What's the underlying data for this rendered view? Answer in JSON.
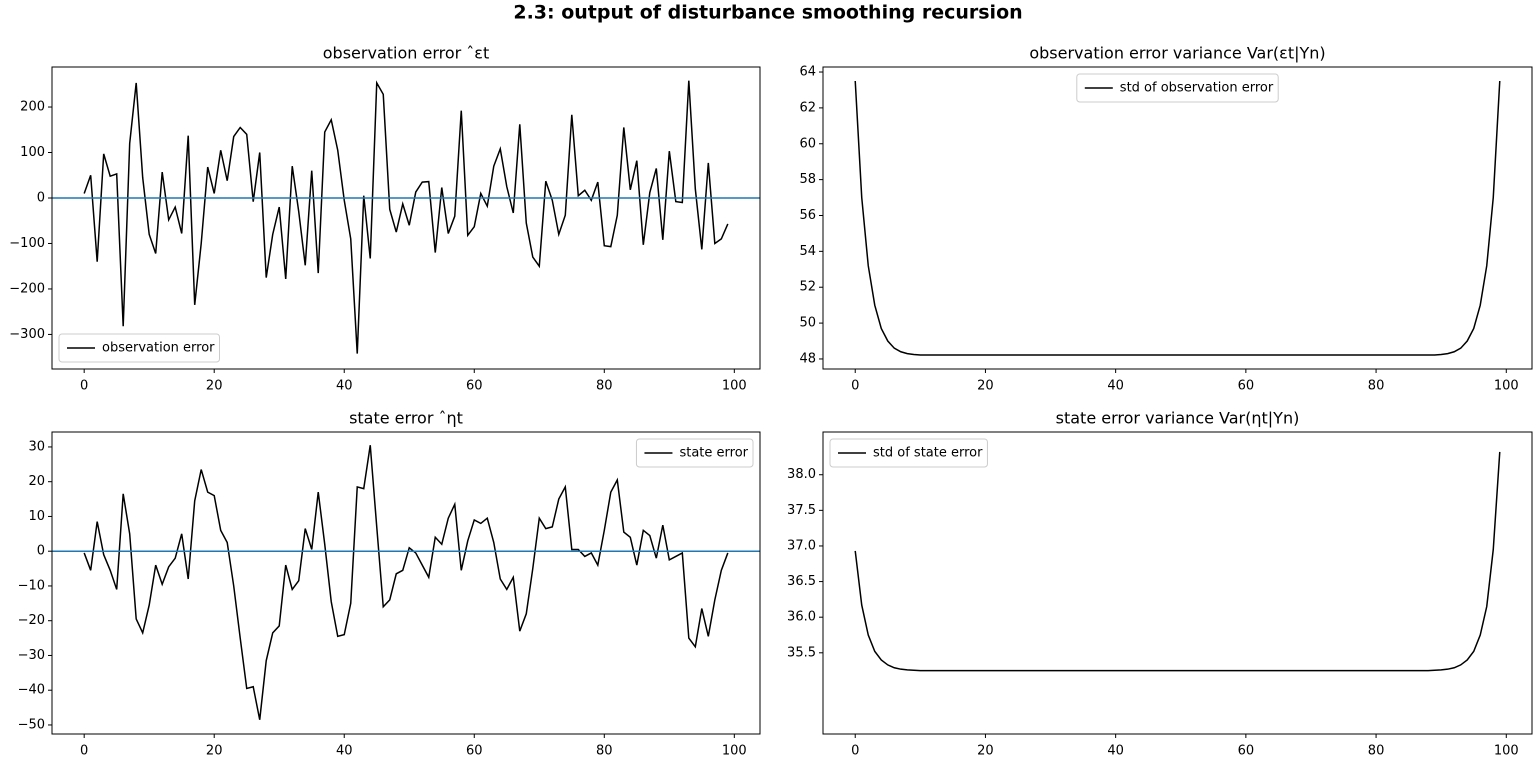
{
  "title": "2.3: output of disturbance smoothing recursion",
  "chart_data": [
    {
      "type": "line",
      "title": "observation error ˆεt",
      "legend": "lower left",
      "axhline": 0,
      "axhline_color": "#1f77b4",
      "xlim": [
        -4.95,
        103.95
      ],
      "xticks": [
        0,
        20,
        40,
        60,
        80,
        100
      ],
      "ylim": [
        -376,
        288
      ],
      "yticks": [
        {
          "value": -300,
          "label": "−300"
        },
        {
          "value": -200,
          "label": "−200"
        },
        {
          "value": -100,
          "label": "−100"
        },
        0,
        100,
        200
      ],
      "x": [
        0,
        1,
        2,
        3,
        4,
        5,
        6,
        7,
        8,
        9,
        10,
        11,
        12,
        13,
        14,
        15,
        16,
        17,
        18,
        19,
        20,
        21,
        22,
        23,
        24,
        25,
        26,
        27,
        28,
        29,
        30,
        31,
        32,
        33,
        34,
        35,
        36,
        37,
        38,
        39,
        40,
        41,
        42,
        43,
        44,
        45,
        46,
        47,
        48,
        49,
        50,
        51,
        52,
        53,
        54,
        55,
        56,
        57,
        58,
        59,
        60,
        61,
        62,
        63,
        64,
        65,
        66,
        67,
        68,
        69,
        70,
        71,
        72,
        73,
        74,
        75,
        76,
        77,
        78,
        79,
        80,
        81,
        82,
        83,
        84,
        85,
        86,
        87,
        88,
        89,
        90,
        91,
        92,
        93,
        94,
        95,
        96,
        97,
        98,
        99
      ],
      "series": [
        {
          "name": "observation error",
          "color": "#000000",
          "values": [
            10,
            50,
            -140,
            97,
            48,
            53,
            -282,
            120,
            253,
            45,
            -80,
            -122,
            57,
            -48,
            -20,
            -78,
            137,
            -235,
            -100,
            68,
            10,
            105,
            38,
            135,
            155,
            140,
            -8,
            100,
            -175,
            -80,
            -20,
            -178,
            70,
            -30,
            -148,
            60,
            -165,
            145,
            172,
            105,
            -5,
            -90,
            -342,
            5,
            -133,
            253,
            228,
            -25,
            -75,
            -13,
            -60,
            13,
            35,
            36,
            -120,
            23,
            -78,
            -40,
            192,
            -82,
            -63,
            10,
            -18,
            70,
            108,
            25,
            -33,
            162,
            -55,
            -130,
            -150,
            37,
            -5,
            -80,
            -38,
            183,
            5,
            17,
            -5,
            35,
            -105,
            -107,
            -38,
            155,
            18,
            82,
            -103,
            12,
            65,
            -92,
            103,
            -8,
            -10,
            258,
            20,
            -113,
            77,
            -100,
            -90,
            -57
          ]
        }
      ]
    },
    {
      "type": "line",
      "title": "observation error variance Var(εt|Yn)",
      "legend": "upper center",
      "xlim": [
        -4.95,
        103.95
      ],
      "xticks": [
        0,
        20,
        40,
        60,
        80,
        100
      ],
      "ylim": [
        47.44,
        64.28
      ],
      "yticks": [
        48,
        50,
        52,
        54,
        56,
        58,
        60,
        62,
        64
      ],
      "x": [
        0,
        1,
        2,
        3,
        4,
        5,
        6,
        7,
        8,
        9,
        10,
        11,
        12,
        13,
        14,
        15,
        16,
        17,
        18,
        19,
        20,
        21,
        22,
        23,
        24,
        25,
        26,
        27,
        28,
        29,
        30,
        31,
        32,
        33,
        34,
        35,
        36,
        37,
        38,
        39,
        40,
        41,
        42,
        43,
        44,
        45,
        46,
        47,
        48,
        49,
        50,
        51,
        52,
        53,
        54,
        55,
        56,
        57,
        58,
        59,
        60,
        61,
        62,
        63,
        64,
        65,
        66,
        67,
        68,
        69,
        70,
        71,
        72,
        73,
        74,
        75,
        76,
        77,
        78,
        79,
        80,
        81,
        82,
        83,
        84,
        85,
        86,
        87,
        88,
        89,
        90,
        91,
        92,
        93,
        94,
        95,
        96,
        97,
        98,
        99
      ],
      "series": [
        {
          "name": "std of observation error",
          "color": "#000000",
          "values": [
            63.5,
            57.0,
            53.2,
            51.0,
            49.7,
            49.0,
            48.6,
            48.4,
            48.3,
            48.25,
            48.22,
            48.22,
            48.22,
            48.22,
            48.22,
            48.22,
            48.22,
            48.22,
            48.22,
            48.22,
            48.22,
            48.22,
            48.22,
            48.22,
            48.22,
            48.22,
            48.22,
            48.22,
            48.22,
            48.22,
            48.22,
            48.22,
            48.22,
            48.22,
            48.22,
            48.22,
            48.22,
            48.22,
            48.22,
            48.22,
            48.22,
            48.22,
            48.22,
            48.22,
            48.22,
            48.22,
            48.22,
            48.22,
            48.22,
            48.22,
            48.22,
            48.22,
            48.22,
            48.22,
            48.22,
            48.22,
            48.22,
            48.22,
            48.22,
            48.22,
            48.22,
            48.22,
            48.22,
            48.22,
            48.22,
            48.22,
            48.22,
            48.22,
            48.22,
            48.22,
            48.22,
            48.22,
            48.22,
            48.22,
            48.22,
            48.22,
            48.22,
            48.22,
            48.22,
            48.22,
            48.22,
            48.22,
            48.22,
            48.22,
            48.22,
            48.22,
            48.22,
            48.22,
            48.22,
            48.22,
            48.25,
            48.3,
            48.4,
            48.6,
            49.0,
            49.7,
            51.0,
            53.2,
            57.0,
            63.5
          ]
        }
      ]
    },
    {
      "type": "line",
      "title": "state error ˆηt",
      "legend": "upper right",
      "axhline": 0,
      "axhline_color": "#1f77b4",
      "xlim": [
        -4.95,
        103.95
      ],
      "xticks": [
        0,
        20,
        40,
        60,
        80,
        100
      ],
      "ylim": [
        -52.6,
        34.3
      ],
      "yticks": [
        {
          "value": -50,
          "label": "−50"
        },
        {
          "value": -40,
          "label": "−40"
        },
        {
          "value": -30,
          "label": "−30"
        },
        {
          "value": -20,
          "label": "−20"
        },
        {
          "value": -10,
          "label": "−10"
        },
        0,
        10,
        20,
        30
      ],
      "x": [
        0,
        1,
        2,
        3,
        4,
        5,
        6,
        7,
        8,
        9,
        10,
        11,
        12,
        13,
        14,
        15,
        16,
        17,
        18,
        19,
        20,
        21,
        22,
        23,
        24,
        25,
        26,
        27,
        28,
        29,
        30,
        31,
        32,
        33,
        34,
        35,
        36,
        37,
        38,
        39,
        40,
        41,
        42,
        43,
        44,
        45,
        46,
        47,
        48,
        49,
        50,
        51,
        52,
        53,
        54,
        55,
        56,
        57,
        58,
        59,
        60,
        61,
        62,
        63,
        64,
        65,
        66,
        67,
        68,
        69,
        70,
        71,
        72,
        73,
        74,
        75,
        76,
        77,
        78,
        79,
        80,
        81,
        82,
        83,
        84,
        85,
        86,
        87,
        88,
        89,
        90,
        91,
        92,
        93,
        94,
        95,
        96,
        97,
        98,
        99
      ],
      "series": [
        {
          "name": "state error",
          "color": "#000000",
          "values": [
            -0.5,
            -5.5,
            8.5,
            -1,
            -5.5,
            -11,
            16.5,
            5,
            -19.5,
            -23.5,
            -15.5,
            -4,
            -9.5,
            -4.5,
            -2,
            5,
            -8,
            14.5,
            23.5,
            17,
            16,
            6,
            2.5,
            -10,
            -25,
            -39.5,
            -39,
            -48.5,
            -31.5,
            -23.5,
            -21.5,
            -4,
            -11,
            -8.5,
            6.5,
            0.5,
            17,
            2,
            -14.5,
            -24.5,
            -24,
            -15,
            18.5,
            18,
            30.5,
            7,
            -16,
            -14,
            -6.5,
            -5.5,
            1,
            -0.5,
            -4,
            -7.5,
            4,
            2,
            9.5,
            13.5,
            -5.5,
            3,
            9,
            8,
            9.5,
            2.5,
            -8,
            -11,
            -7.5,
            -23,
            -18,
            -5,
            9.5,
            6.5,
            7,
            15,
            18.5,
            0.5,
            0.5,
            -1.5,
            -0.5,
            -4,
            6,
            17,
            20.5,
            5.5,
            4,
            -4,
            6,
            4.5,
            -2,
            7.5,
            -2.5,
            -1.5,
            -0.5,
            -25,
            -27.5,
            -16.5,
            -24.5,
            -14,
            -5.5,
            -0.5
          ]
        }
      ]
    },
    {
      "type": "line",
      "title": "state error variance Var(ηt|Yn)",
      "legend": "upper left",
      "xlim": [
        -4.95,
        103.95
      ],
      "xticks": [
        0,
        20,
        40,
        60,
        80,
        100
      ],
      "ylim": [
        34.36,
        38.6
      ],
      "yticks": [
        35.5,
        {
          "value": 36,
          "label": "36.0"
        },
        36.5,
        {
          "value": 37,
          "label": "37.0"
        },
        37.5,
        {
          "value": 38,
          "label": "38.0"
        }
      ],
      "x": [
        0,
        1,
        2,
        3,
        4,
        5,
        6,
        7,
        8,
        9,
        10,
        11,
        12,
        13,
        14,
        15,
        16,
        17,
        18,
        19,
        20,
        21,
        22,
        23,
        24,
        25,
        26,
        27,
        28,
        29,
        30,
        31,
        32,
        33,
        34,
        35,
        36,
        37,
        38,
        39,
        40,
        41,
        42,
        43,
        44,
        45,
        46,
        47,
        48,
        49,
        50,
        51,
        52,
        53,
        54,
        55,
        56,
        57,
        58,
        59,
        60,
        61,
        62,
        63,
        64,
        65,
        66,
        67,
        68,
        69,
        70,
        71,
        72,
        73,
        74,
        75,
        76,
        77,
        78,
        79,
        80,
        81,
        82,
        83,
        84,
        85,
        86,
        87,
        88,
        89,
        90,
        91,
        92,
        93,
        94,
        95,
        96,
        97,
        98,
        99
      ],
      "series": [
        {
          "name": "std of state error",
          "color": "#000000",
          "values": [
            36.93,
            36.17,
            35.75,
            35.52,
            35.4,
            35.33,
            35.29,
            35.27,
            35.26,
            35.255,
            35.25,
            35.25,
            35.25,
            35.25,
            35.25,
            35.25,
            35.25,
            35.25,
            35.25,
            35.25,
            35.25,
            35.25,
            35.25,
            35.25,
            35.25,
            35.25,
            35.25,
            35.25,
            35.25,
            35.25,
            35.25,
            35.25,
            35.25,
            35.25,
            35.25,
            35.25,
            35.25,
            35.25,
            35.25,
            35.25,
            35.25,
            35.25,
            35.25,
            35.25,
            35.25,
            35.25,
            35.25,
            35.25,
            35.25,
            35.25,
            35.25,
            35.25,
            35.25,
            35.25,
            35.25,
            35.25,
            35.25,
            35.25,
            35.25,
            35.25,
            35.25,
            35.25,
            35.25,
            35.25,
            35.25,
            35.25,
            35.25,
            35.25,
            35.25,
            35.25,
            35.25,
            35.25,
            35.25,
            35.25,
            35.25,
            35.25,
            35.25,
            35.25,
            35.25,
            35.25,
            35.25,
            35.25,
            35.25,
            35.25,
            35.25,
            35.25,
            35.25,
            35.25,
            35.25,
            35.255,
            35.26,
            35.27,
            35.29,
            35.33,
            35.4,
            35.52,
            35.75,
            36.15,
            36.95,
            38.32
          ]
        }
      ]
    }
  ]
}
